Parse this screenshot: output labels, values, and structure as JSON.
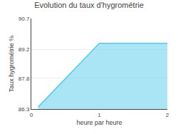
{
  "chart_data": {
    "type": "area",
    "title": "Evolution du taux d'hygrométrie",
    "xlabel": "heure par heure",
    "ylabel": "Taux hygrométrie %",
    "x": [
      0.1,
      1.0,
      2.0
    ],
    "values": [
      86.4,
      89.5,
      89.5
    ],
    "color": "#55ccee",
    "xlim": [
      0,
      2
    ],
    "ylim": [
      86.3,
      90.7
    ],
    "xticks": [
      0,
      1,
      2
    ],
    "yticks": [
      86.3,
      87.8,
      89.2,
      90.7
    ],
    "grid": "y"
  }
}
